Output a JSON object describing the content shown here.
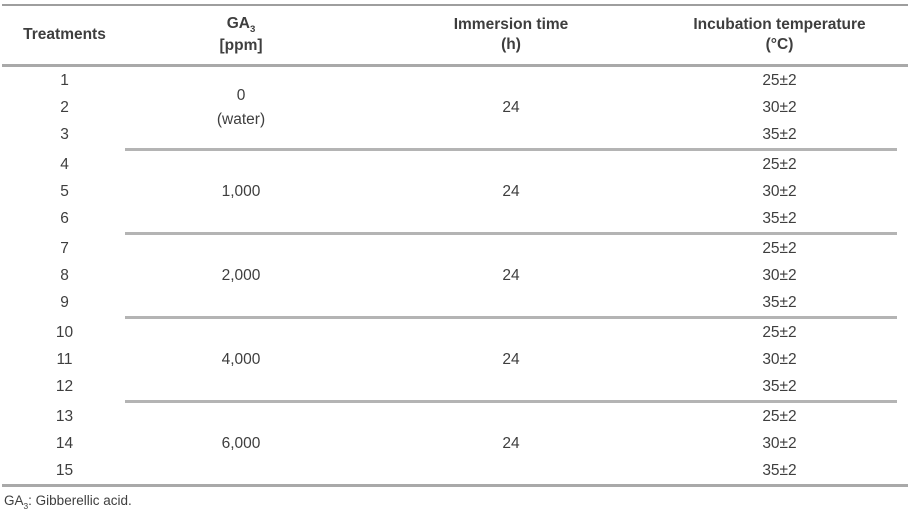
{
  "table": {
    "header": {
      "col1": "Treatments",
      "col2_main": "GA",
      "col2_sub": "3",
      "col2_unit": "[ppm]",
      "col3": "Immersion time",
      "col3_unit": "(h)",
      "col4": "Incubation temperature",
      "col4_unit": "(°C)"
    },
    "groups": [
      {
        "treatments": [
          "1",
          "2",
          "3"
        ],
        "ga3": "0",
        "ga3_note": "(water)",
        "immersion": "24",
        "temperatures": [
          "25±2",
          "30±2",
          "35±2"
        ]
      },
      {
        "treatments": [
          "4",
          "5",
          "6"
        ],
        "ga3": "1,000",
        "ga3_note": "",
        "immersion": "24",
        "temperatures": [
          "25±2",
          "30±2",
          "35±2"
        ]
      },
      {
        "treatments": [
          "7",
          "8",
          "9"
        ],
        "ga3": "2,000",
        "ga3_note": "",
        "immersion": "24",
        "temperatures": [
          "25±2",
          "30±2",
          "35±2"
        ]
      },
      {
        "treatments": [
          "10",
          "11",
          "12"
        ],
        "ga3": "4,000",
        "ga3_note": "",
        "immersion": "24",
        "temperatures": [
          "25±2",
          "30±2",
          "35±2"
        ]
      },
      {
        "treatments": [
          "13",
          "14",
          "15"
        ],
        "ga3": "6,000",
        "ga3_note": "",
        "immersion": "24",
        "temperatures": [
          "25±2",
          "30±2",
          "35±2"
        ]
      }
    ],
    "colors": {
      "rule_heavy": "#a9a9a9",
      "rule_light": "#b4b4b4",
      "text": "#3e3e3e"
    }
  },
  "footnote": {
    "prefix": "GA",
    "subscript": "3",
    "rest": ": Gibberellic acid."
  }
}
